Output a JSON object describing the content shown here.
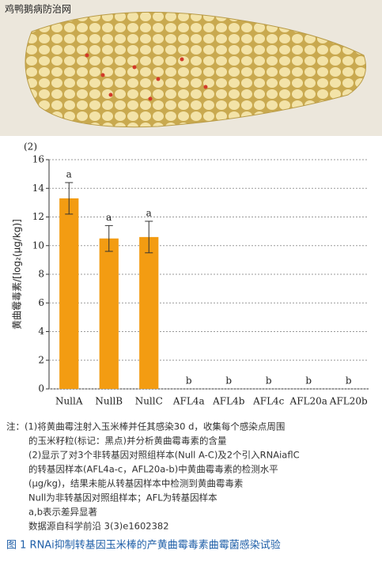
{
  "watermark": "鸡鸭鹅病防治网",
  "panel_label": "(2)",
  "chart_data": {
    "type": "bar",
    "ylabel": "黄曲霉毒素/[log₂(μg/kg)]",
    "categories": [
      "NullA",
      "NullB",
      "NullC",
      "AFL4a",
      "AFL4b",
      "AFL4c",
      "AFL20a",
      "AFL20b"
    ],
    "values": [
      13.3,
      10.5,
      10.6,
      0,
      0,
      0,
      0,
      0
    ],
    "errors": [
      1.1,
      0.9,
      1.1,
      null,
      null,
      null,
      null,
      null
    ],
    "labels": [
      "a",
      "a",
      "a",
      "b",
      "b",
      "b",
      "b",
      "b"
    ],
    "color": "#f39c12",
    "ylim": [
      0,
      16
    ],
    "yticks": [
      0,
      2,
      4,
      6,
      8,
      10,
      12,
      14,
      16
    ],
    "grid": true
  },
  "notes": [
    "注：(1)将黄曲霉注射入玉米棒并任其感染30 d，收集每个感染点周围",
    "的玉米籽粒(标记：黑点)并分析黄曲霉毒素的含量",
    "(2)显示了对3个非转基因对照组样本(Null A-C)及2个引入RNAiaflC",
    "的转基因样本(AFL4a-c，AFL20a-b)中黄曲霉毒素的检测水平",
    "(μg/kg)，结果未能从转基因样本中检测到黄曲霉毒素",
    "Null为非转基因对照组样本；AFL为转基因样本",
    "a,b表示差异显著",
    "数据源自科学前沿 3(3)e1602382"
  ],
  "caption": "图 1  RNAi抑制转基因玉米棒的产黄曲霉毒素曲霉菌感染试验"
}
